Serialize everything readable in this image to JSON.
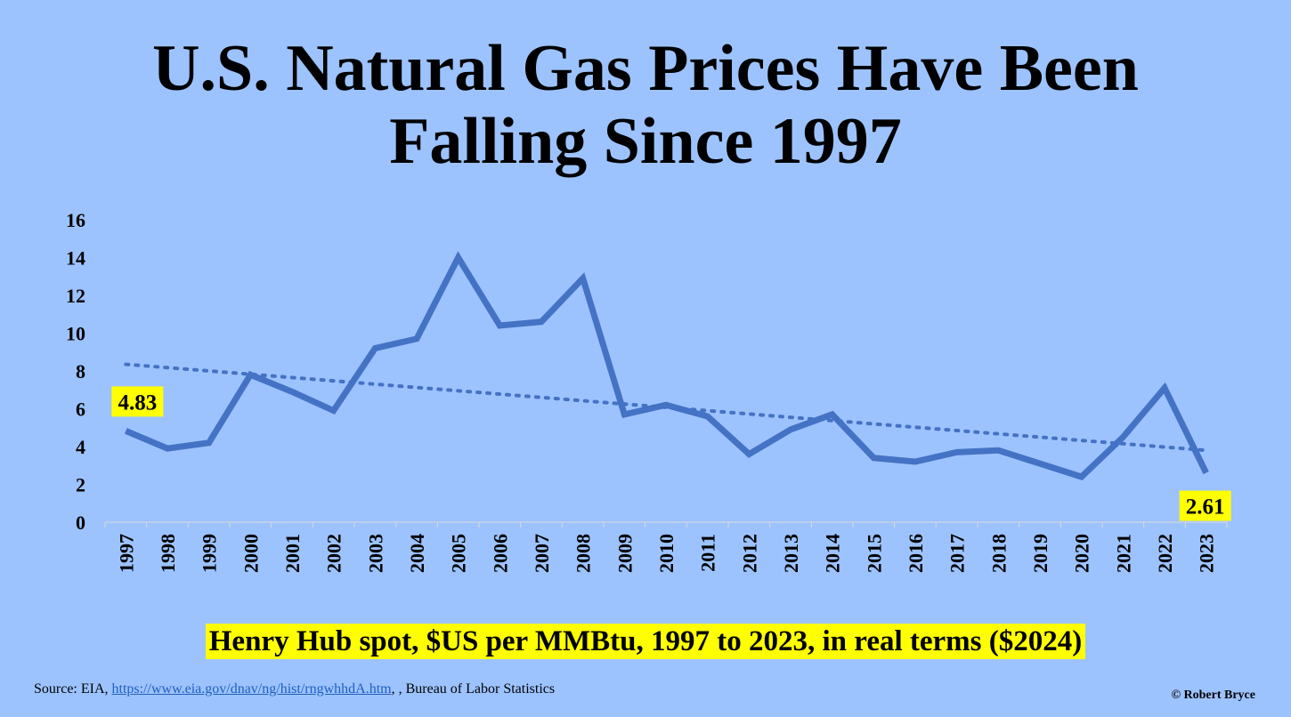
{
  "title": {
    "line1": "U.S. Natural Gas Prices Have Been",
    "line2": "Falling Since 1997"
  },
  "caption": "Henry Hub spot, $US per MMBtu, 1997 to 2023, in real terms ($2024)",
  "source": {
    "prefix": "Source: EIA, ",
    "link": "https://www.eia.gov/dnav/ng/hist/rngwhhdA.htm",
    "suffix": ", , Bureau of Labor Statistics"
  },
  "credit": "© Robert Bryce",
  "colors": {
    "background": "#9dc3ff",
    "series": "#4472c4",
    "highlight": "#ffff00"
  },
  "chart_data": {
    "type": "line",
    "categories": [
      "1997",
      "1998",
      "1999",
      "2000",
      "2001",
      "2002",
      "2003",
      "2004",
      "2005",
      "2006",
      "2007",
      "2008",
      "2009",
      "2010",
      "2011",
      "2012",
      "2013",
      "2014",
      "2015",
      "2016",
      "2017",
      "2018",
      "2019",
      "2020",
      "2021",
      "2022",
      "2023"
    ],
    "series": [
      {
        "values": [
          4.83,
          3.9,
          4.2,
          7.8,
          6.9,
          5.9,
          9.2,
          9.7,
          14.0,
          10.4,
          10.6,
          12.9,
          5.7,
          6.2,
          5.6,
          3.6,
          4.9,
          5.7,
          3.4,
          3.2,
          3.7,
          3.8,
          3.1,
          2.4,
          4.5,
          7.1,
          2.61
        ]
      }
    ],
    "trendline": {
      "style": "dotted",
      "start": 8.35,
      "end": 3.8
    },
    "data_labels": [
      {
        "category": "1997",
        "text": "4.83"
      },
      {
        "category": "2023",
        "text": "2.61"
      }
    ],
    "y_ticks": [
      "0",
      "2",
      "4",
      "6",
      "8",
      "10",
      "12",
      "14",
      "16"
    ],
    "ylim": [
      0,
      16
    ],
    "grid": false,
    "legend": "none"
  }
}
